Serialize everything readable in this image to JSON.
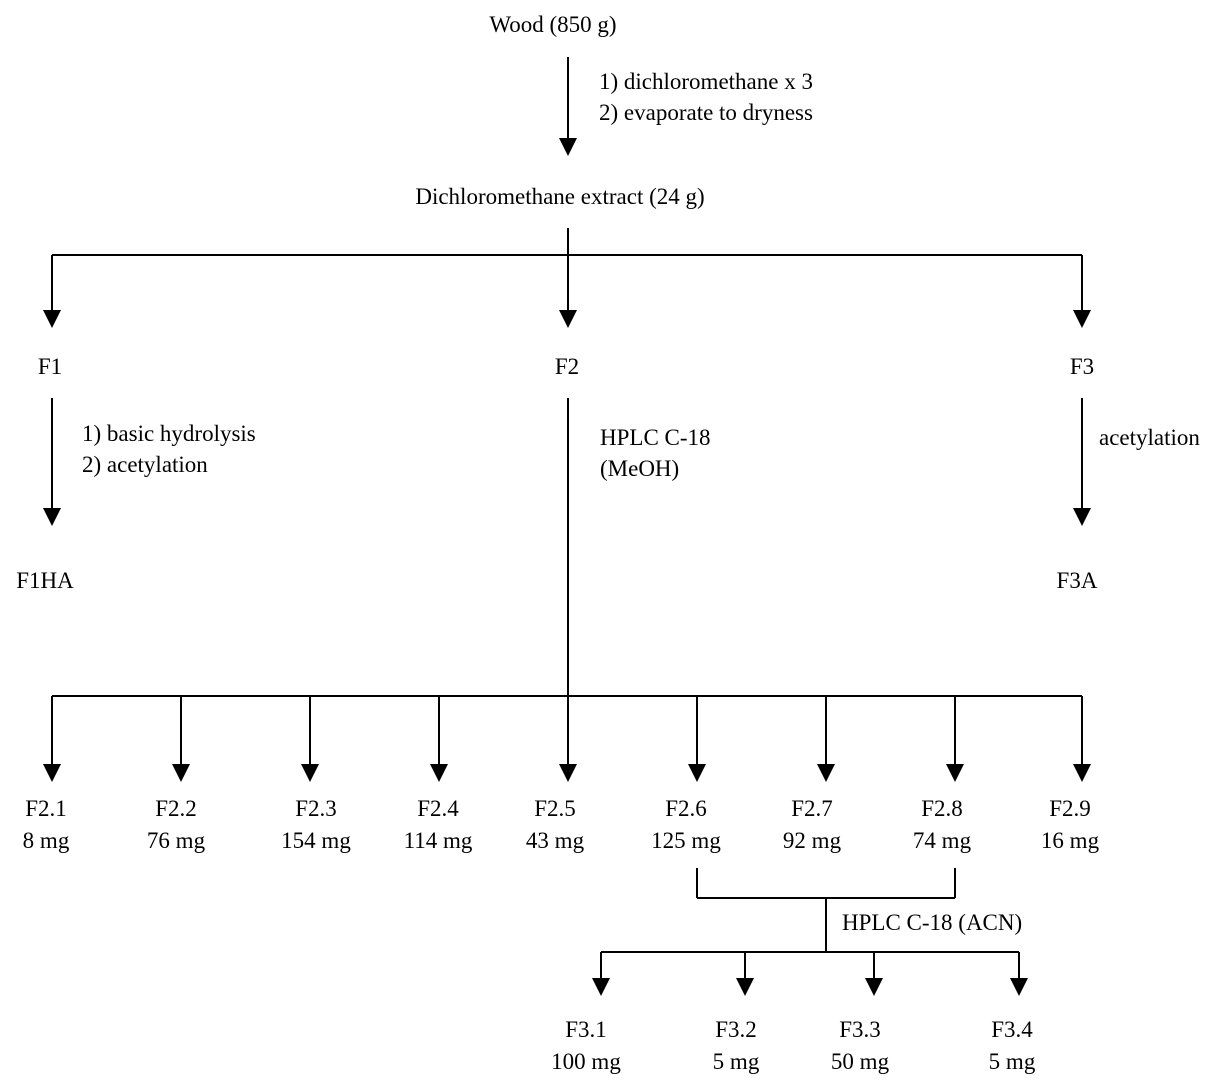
{
  "start": {
    "name": "Wood (850 g)"
  },
  "steps": {
    "extraction": [
      "1) dichloromethane x 3",
      "2) evaporate to dryness"
    ],
    "f1_treatment": [
      "1) basic hydrolysis",
      "2) acetylation"
    ],
    "f2_hplc": [
      "HPLC C-18",
      "(MeOH)"
    ],
    "f3_treatment": "acetylation",
    "recomb_hplc": "HPLC C-18 (ACN)"
  },
  "extract": {
    "name": "Dichloromethane extract (24 g)"
  },
  "fractions": [
    "F1",
    "F2",
    "F3"
  ],
  "derived": {
    "f1": "F1HA",
    "f3": "F3A"
  },
  "f2_subfractions": [
    {
      "name": "F2.1",
      "mass": "8  mg"
    },
    {
      "name": "F2.2",
      "mass": "76 mg"
    },
    {
      "name": "F2.3",
      "mass": "154 mg"
    },
    {
      "name": "F2.4",
      "mass": "114 mg"
    },
    {
      "name": "F2.5",
      "mass": "43 mg"
    },
    {
      "name": "F2.6",
      "mass": "125 mg"
    },
    {
      "name": "F2.7",
      "mass": "92 mg"
    },
    {
      "name": "F2.8",
      "mass": "74 mg"
    },
    {
      "name": "F2.9",
      "mass": "16 mg"
    }
  ],
  "f3_subfractions": [
    {
      "name": "F3.1",
      "mass": "100 mg"
    },
    {
      "name": "F3.2",
      "mass": "5  mg"
    },
    {
      "name": "F3.3",
      "mass": "50 mg"
    },
    {
      "name": "F3.4",
      "mass": "5 mg"
    }
  ]
}
